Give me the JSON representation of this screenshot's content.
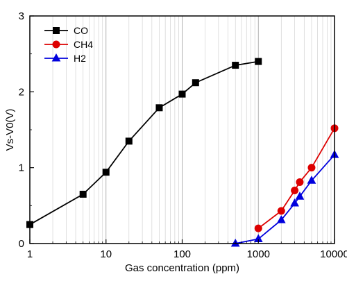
{
  "chart_data": {
    "type": "line",
    "xlabel": "Gas concentration (ppm)",
    "ylabel": "Vs-V0(V)",
    "xscale": "log",
    "xlim": [
      1,
      10000
    ],
    "ylim": [
      0,
      3
    ],
    "xticks": [
      1,
      10,
      100,
      1000,
      10000
    ],
    "xtick_labels": [
      "1",
      "10",
      "100",
      "1000",
      "10000"
    ],
    "yticks": [
      0,
      1,
      2,
      3
    ],
    "ytick_labels": [
      "0",
      "1",
      "2",
      "3"
    ],
    "grid": true,
    "legend_position": "top-left",
    "series": [
      {
        "name": "CO",
        "color": "#000000",
        "marker": "square",
        "points": [
          {
            "x": 1,
            "y": 0.25
          },
          {
            "x": 5,
            "y": 0.65
          },
          {
            "x": 10,
            "y": 0.94
          },
          {
            "x": 20,
            "y": 1.35
          },
          {
            "x": 50,
            "y": 1.79
          },
          {
            "x": 100,
            "y": 1.97
          },
          {
            "x": 150,
            "y": 2.12
          },
          {
            "x": 500,
            "y": 2.35
          },
          {
            "x": 1000,
            "y": 2.4
          }
        ]
      },
      {
        "name": "CH4",
        "color": "#dd0000",
        "marker": "circle",
        "points": [
          {
            "x": 1000,
            "y": 0.2
          },
          {
            "x": 2000,
            "y": 0.43
          },
          {
            "x": 3000,
            "y": 0.7
          },
          {
            "x": 3500,
            "y": 0.81
          },
          {
            "x": 5000,
            "y": 1.0
          },
          {
            "x": 10000,
            "y": 1.52
          }
        ]
      },
      {
        "name": "H2",
        "color": "#0000dd",
        "marker": "triangle",
        "points": [
          {
            "x": 500,
            "y": 0.0
          },
          {
            "x": 1000,
            "y": 0.06
          },
          {
            "x": 2000,
            "y": 0.31
          },
          {
            "x": 3000,
            "y": 0.53
          },
          {
            "x": 3500,
            "y": 0.62
          },
          {
            "x": 5000,
            "y": 0.83
          },
          {
            "x": 10000,
            "y": 1.17
          }
        ]
      }
    ]
  }
}
